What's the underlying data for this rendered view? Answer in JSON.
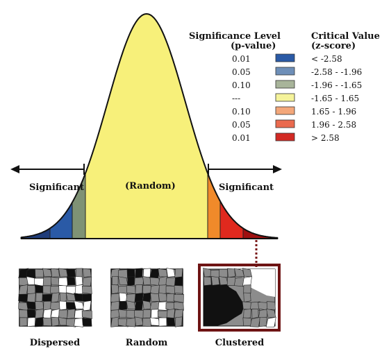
{
  "legend": {
    "col1_header_line1": "Significance Level",
    "col1_header_line2": "(p-value)",
    "col2_header_line1": "Critical Value",
    "col2_header_line2": "(z-score)",
    "rows": [
      {
        "p": "0.01",
        "z": "< -2.58",
        "color": "#2a5aa6"
      },
      {
        "p": "0.05",
        "z": "-2.58 - -1.96",
        "color": "#6e8fb8"
      },
      {
        "p": "0.10",
        "z": "-1.96 - -1.65",
        "color": "#a8b49a"
      },
      {
        "p": "---",
        "z": "-1.65 - 1.65",
        "color": "#f5f39a"
      },
      {
        "p": "0.10",
        "z": "1.65 - 1.96",
        "color": "#f3a77a"
      },
      {
        "p": "0.05",
        "z": "1.96 - 2.58",
        "color": "#ea6a4e"
      },
      {
        "p": "0.01",
        "z": "> 2.58",
        "color": "#d22a24"
      }
    ]
  },
  "curve": {
    "left_label": "Significant",
    "center_label": "(Random)",
    "right_label": "Significant",
    "region_colors": {
      "far_left": "#1f3c7a",
      "left_mid": "#2a5aa6",
      "left_inner": "#7f9275",
      "center": "#f7f07a",
      "right_inner": "#f08a2a",
      "right_mid": "#e0291e",
      "far_right": "#9e1010"
    }
  },
  "patterns": [
    {
      "label": "Dispersed",
      "label_color": "#111111"
    },
    {
      "label": "Random",
      "label_color": "#111111"
    },
    {
      "label": "Clustered",
      "label_color": "#a01818"
    }
  ]
}
